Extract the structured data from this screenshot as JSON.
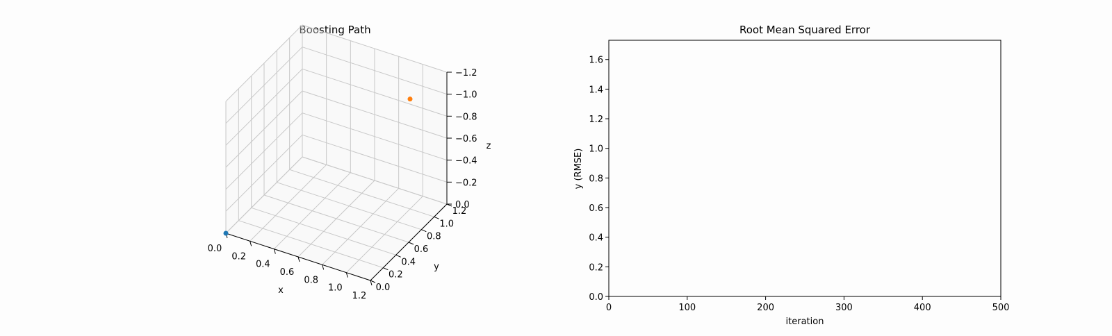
{
  "chart_data": [
    {
      "type": "scatter",
      "projection": "3d",
      "title": "Boosting Path",
      "xlabel": "x",
      "ylabel": "y",
      "zlabel": "z",
      "xlim": [
        0.0,
        1.2
      ],
      "ylim": [
        0.0,
        1.2
      ],
      "zlim": [
        0.0,
        -1.2
      ],
      "x_ticks": [
        "0.0",
        "0.2",
        "0.4",
        "0.6",
        "0.8",
        "1.0",
        "1.2"
      ],
      "y_ticks": [
        "0.0",
        "0.2",
        "0.4",
        "0.6",
        "0.8",
        "1.0",
        "1.2"
      ],
      "z_ticks": [
        "0.0",
        "−0.2",
        "−0.4",
        "−0.6",
        "−0.8",
        "−1.0",
        "−1.2"
      ],
      "grid": true,
      "series": [
        {
          "color": "#1f77b4",
          "points": [
            {
              "x": 0.0,
              "y": 0.0,
              "z": 0.0
            }
          ]
        },
        {
          "color": "#ff7f0e",
          "points": [
            {
              "x": 1.0,
              "y": 1.0,
              "z": -1.0
            }
          ]
        }
      ]
    },
    {
      "type": "line",
      "title": "Root Mean Squared Error",
      "xlabel": "iteration",
      "ylabel": "y (RMSE)",
      "xlim": [
        0,
        500
      ],
      "ylim": [
        0.0,
        1.73
      ],
      "x_ticks": [
        "0",
        "100",
        "200",
        "300",
        "400",
        "500"
      ],
      "y_ticks": [
        "0.0",
        "0.2",
        "0.4",
        "0.6",
        "0.8",
        "1.0",
        "1.2",
        "1.4",
        "1.6"
      ],
      "grid": false,
      "series": []
    }
  ]
}
